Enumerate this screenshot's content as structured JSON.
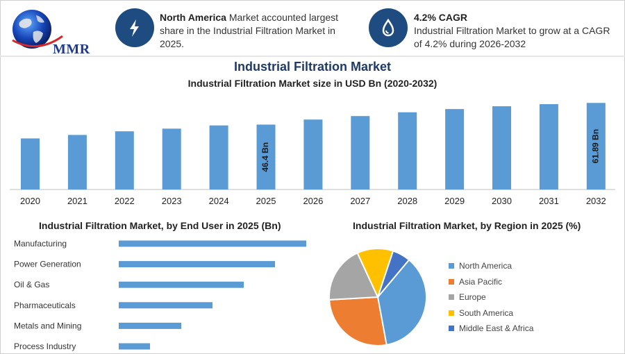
{
  "logo": {
    "text": "MMR"
  },
  "info_cards": [
    {
      "icon": "lightning-icon",
      "bold": "North America",
      "text": " Market accounted largest share in the Industrial Filtration Market in 2025."
    },
    {
      "icon": "growth-drop-icon",
      "bold": "4.2% CAGR",
      "text": "Industrial Filtration Market to grow at a CAGR of 4.2% during 2026-2032"
    }
  ],
  "colors": {
    "accent": "#1e4c80",
    "bar": "#5b9bd5",
    "title": "#1f3a66"
  },
  "chart_data": [
    {
      "type": "bar",
      "title": "Industrial Filtration Market",
      "subtitle": "Industrial Filtration Market size in USD Bn (2020-2032)",
      "categories": [
        "2020",
        "2021",
        "2022",
        "2023",
        "2024",
        "2025",
        "2026",
        "2027",
        "2028",
        "2029",
        "2030",
        "2031",
        "2032"
      ],
      "values": [
        36.5,
        39.0,
        41.6,
        43.5,
        45.8,
        46.4,
        50.0,
        52.5,
        55.2,
        57.5,
        59.5,
        61.0,
        61.89
      ],
      "data_labels": [
        {
          "index": 5,
          "text": "46.4 Bn"
        },
        {
          "index": 12,
          "text": "61.89 Bn"
        }
      ],
      "ylim": [
        0,
        65
      ],
      "grid": false
    },
    {
      "type": "bar",
      "orientation": "horizontal",
      "title": "Industrial Filtration Market, by End User in 2025 (Bn)",
      "categories": [
        "Manufacturing",
        "Power Generation",
        "Oil & Gas",
        "Pharmaceuticals",
        "Metals and Mining",
        "Process Industry"
      ],
      "values": [
        12.0,
        10.0,
        8.0,
        6.0,
        4.0,
        2.0
      ],
      "xlim": [
        0,
        12
      ]
    },
    {
      "type": "pie",
      "title": "Industrial Filtration Market, by Region in 2025 (%)",
      "labels": [
        "North America",
        "Asia Pacific",
        "Europe",
        "South America",
        "Middle East & Africa"
      ],
      "values": [
        36,
        27,
        19,
        12,
        6
      ],
      "colors": [
        "#5b9bd5",
        "#ed7d31",
        "#a5a5a5",
        "#ffc000",
        "#4472c4"
      ],
      "legend": "right"
    }
  ]
}
